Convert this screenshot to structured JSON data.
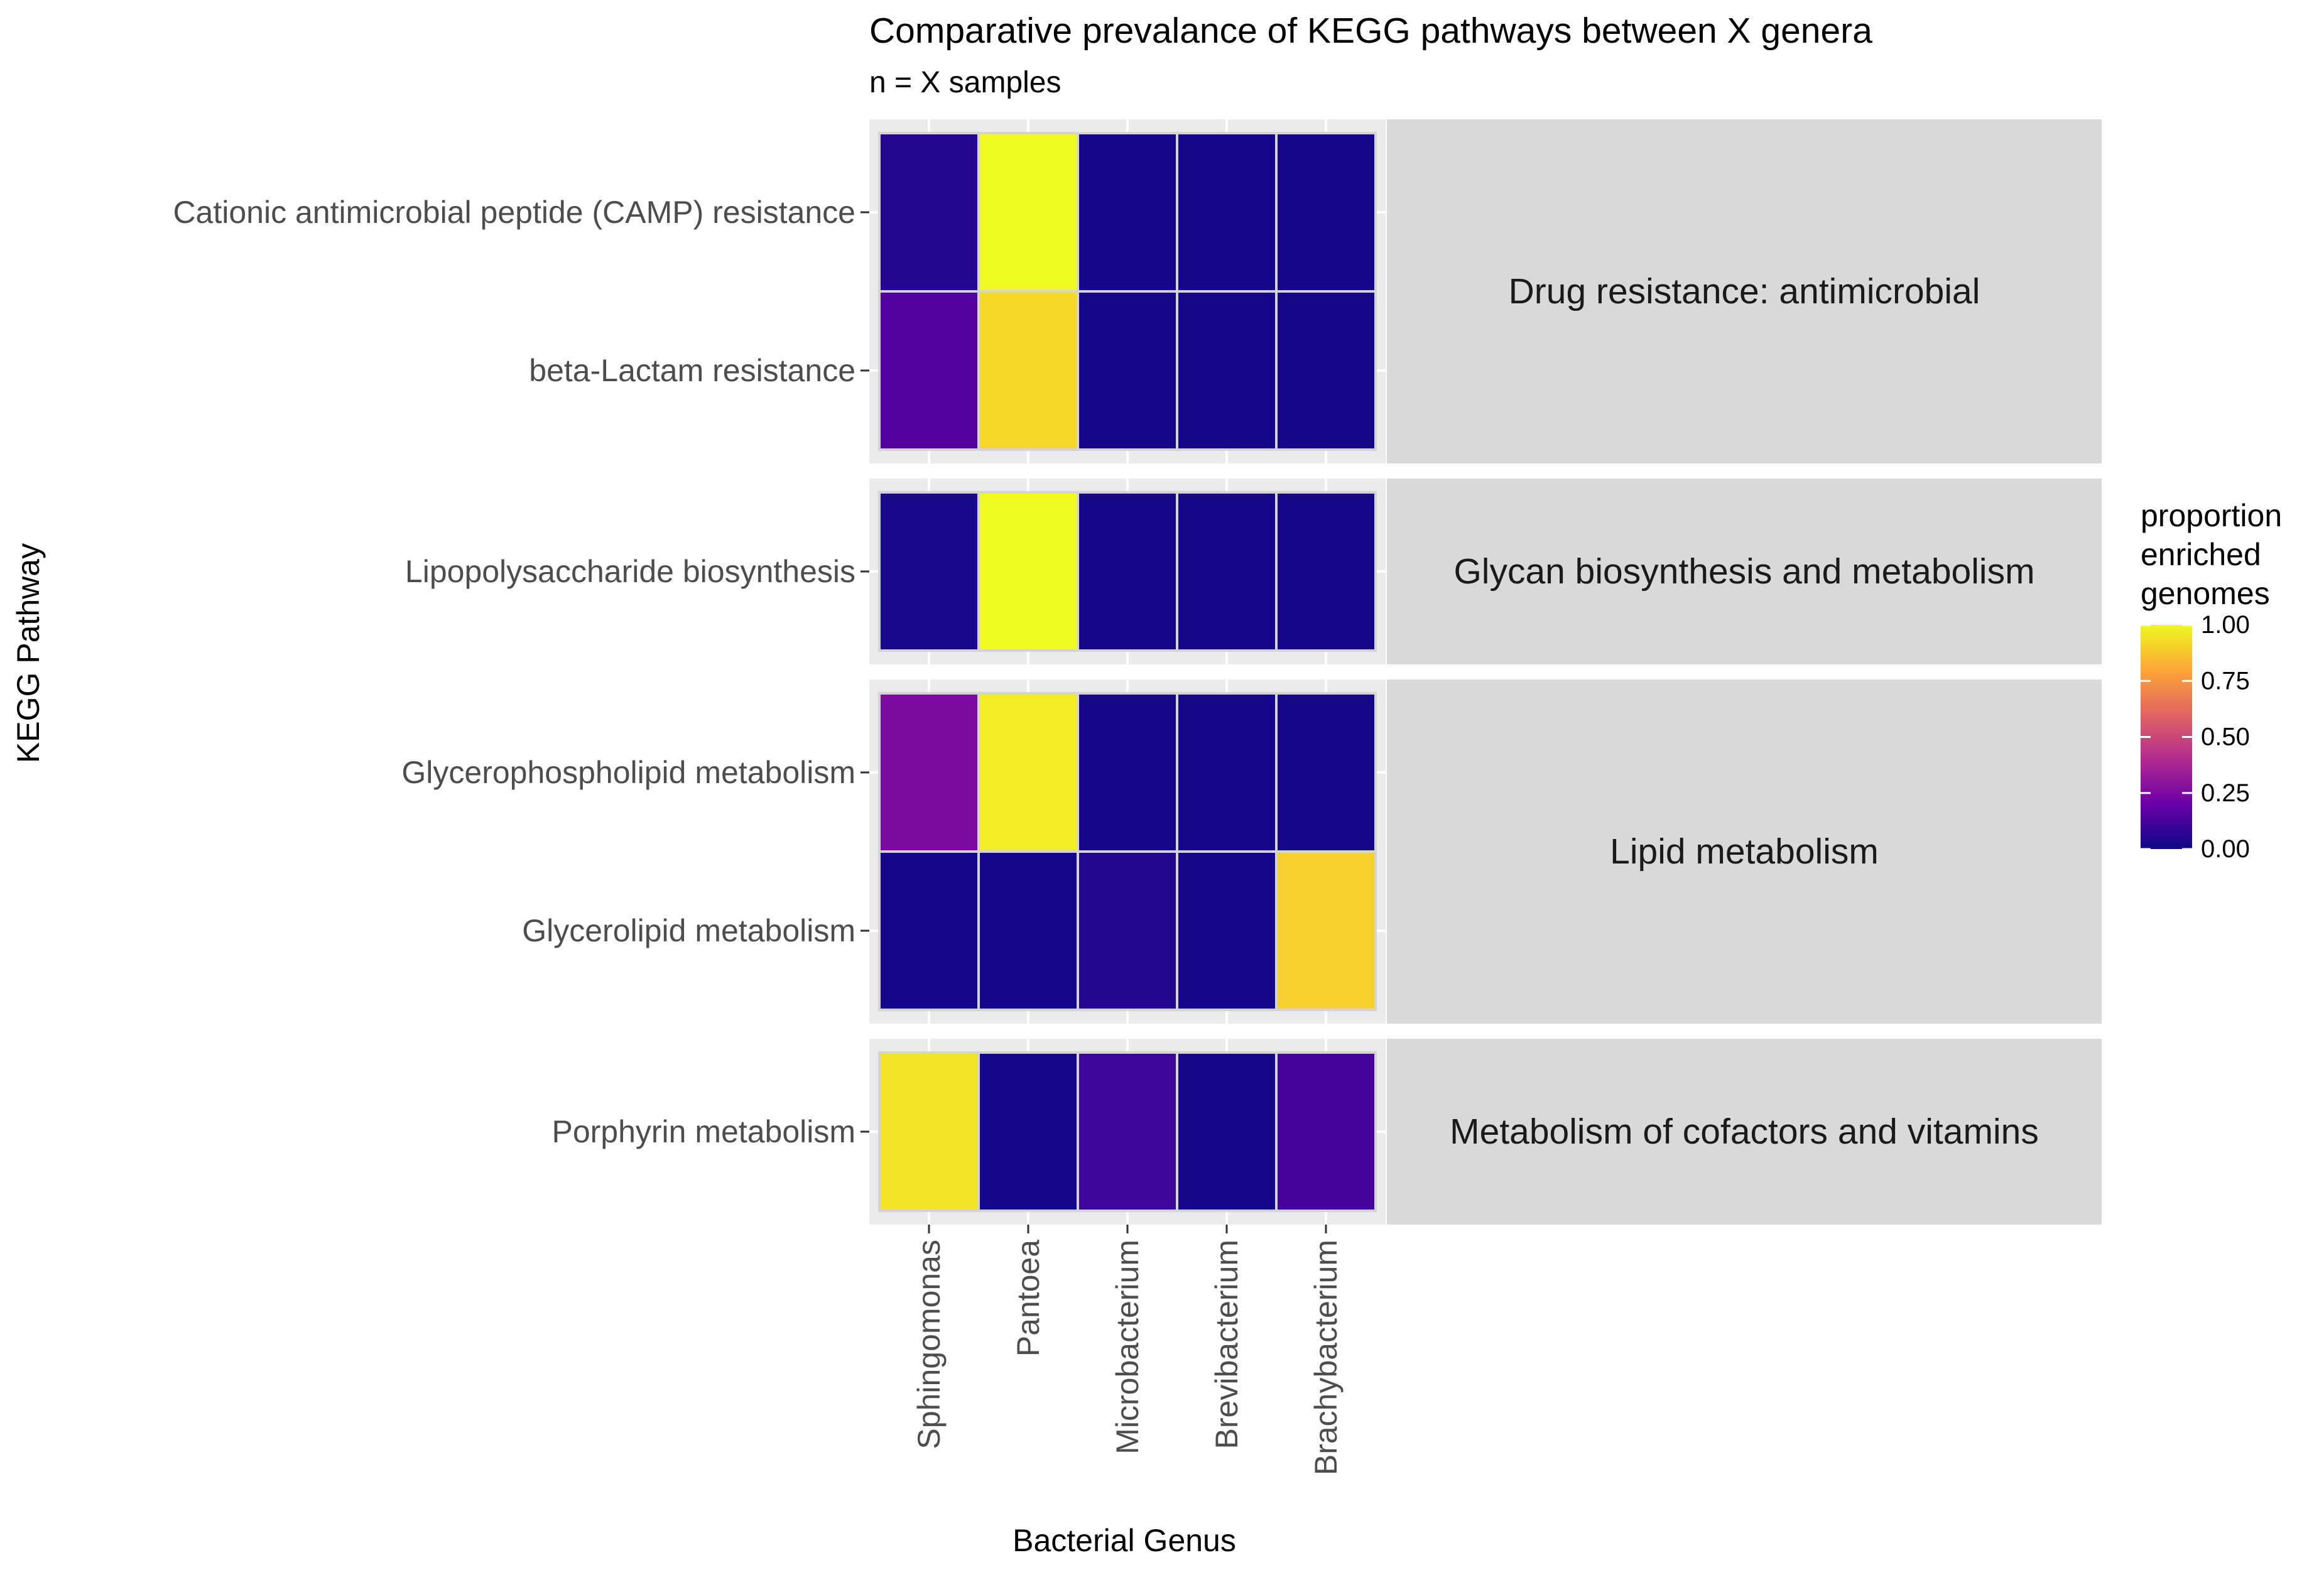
{
  "chart_data": {
    "type": "heatmap",
    "title": "Comparative prevalance of KEGG pathways between X genera",
    "subtitle": "n = X samples",
    "xlabel": "Bacterial Genus",
    "ylabel": "KEGG Pathway",
    "x_categories": [
      "Sphingomonas",
      "Pantoea",
      "Microbacterium",
      "Brevibacterium",
      "Brachybacterium"
    ],
    "facets": [
      {
        "label": "Drug resistance: antimicrobial",
        "rows": [
          {
            "pathway": "Cationic antimicrobial peptide (CAMP) resistance",
            "values": [
              0.05,
              1.0,
              0.02,
              0.02,
              0.02
            ]
          },
          {
            "pathway": "beta-Lactam resistance",
            "values": [
              0.15,
              0.92,
              0.02,
              0.02,
              0.02
            ]
          }
        ]
      },
      {
        "label": "Glycan biosynthesis and metabolism",
        "rows": [
          {
            "pathway": "Lipopolysaccharide biosynthesis",
            "values": [
              0.03,
              1.0,
              0.02,
              0.02,
              0.02
            ]
          }
        ]
      },
      {
        "label": "Lipid metabolism",
        "rows": [
          {
            "pathway": "Glycerophospholipid metabolism",
            "values": [
              0.25,
              0.97,
              0.02,
              0.02,
              0.02
            ]
          },
          {
            "pathway": "Glycerolipid metabolism",
            "values": [
              0.02,
              0.02,
              0.05,
              0.02,
              0.9
            ]
          }
        ]
      },
      {
        "label": "Metabolism of cofactors and vitamins",
        "rows": [
          {
            "pathway": "Porphyrin metabolism",
            "values": [
              0.95,
              0.02,
              0.1,
              0.02,
              0.12
            ]
          }
        ]
      }
    ],
    "legend": {
      "title_lines": [
        "proportion",
        "enriched",
        "genomes"
      ],
      "ticks": [
        "0.00",
        "0.25",
        "0.50",
        "0.75",
        "1.00"
      ],
      "range": [
        0,
        1
      ],
      "placement": "right"
    },
    "colors": {
      "panel_bg": "#ebebeb",
      "strip_bg": "#d9d9d9",
      "tile_border": "#d4d4d4",
      "palette": [
        "#0d0887",
        "#6a00a8",
        "#b12a90",
        "#e16462",
        "#fca636",
        "#f0f921"
      ]
    }
  }
}
